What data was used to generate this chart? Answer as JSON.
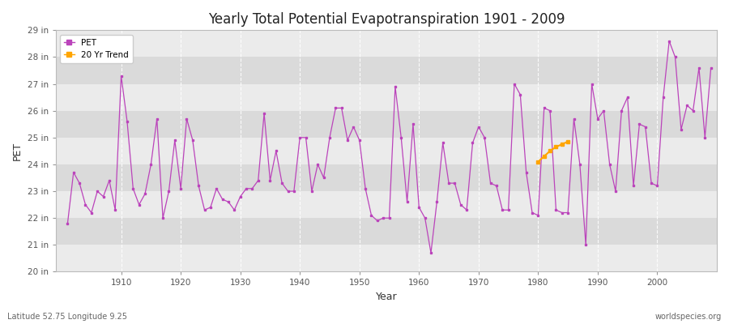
{
  "title": "Yearly Total Potential Evapotranspiration 1901 - 2009",
  "xlabel": "Year",
  "ylabel": "PET",
  "footnote_left": "Latitude 52.75 Longitude 9.25",
  "footnote_right": "worldspecies.org",
  "ylim": [
    20,
    29
  ],
  "ytick_labels": [
    "20 in",
    "21 in",
    "22 in",
    "23 in",
    "24 in",
    "25 in",
    "26 in",
    "27 in",
    "28 in",
    "29 in"
  ],
  "ytick_values": [
    20,
    21,
    22,
    23,
    24,
    25,
    26,
    27,
    28,
    29
  ],
  "pet_color": "#BB44BB",
  "trend_color": "#FFA500",
  "fig_bg": "#FFFFFF",
  "plot_bg": "#E8E8E8",
  "band_light": "#EBEBEB",
  "band_dark": "#DADADA",
  "pet_data": {
    "1901": 21.8,
    "1902": 23.7,
    "1903": 23.3,
    "1904": 22.5,
    "1905": 22.2,
    "1906": 23.0,
    "1907": 22.8,
    "1908": 23.4,
    "1909": 22.3,
    "1910": 27.3,
    "1911": 25.6,
    "1912": 23.1,
    "1913": 22.5,
    "1914": 22.9,
    "1915": 24.0,
    "1916": 25.7,
    "1917": 22.0,
    "1918": 23.0,
    "1919": 24.9,
    "1920": 23.1,
    "1921": 25.7,
    "1922": 24.9,
    "1923": 23.2,
    "1924": 22.3,
    "1925": 22.4,
    "1926": 23.1,
    "1927": 22.7,
    "1928": 22.6,
    "1929": 22.3,
    "1930": 22.8,
    "1931": 23.1,
    "1932": 23.1,
    "1933": 23.4,
    "1934": 25.9,
    "1935": 23.4,
    "1936": 24.5,
    "1937": 23.3,
    "1938": 23.0,
    "1939": 23.0,
    "1940": 25.0,
    "1941": 25.0,
    "1942": 23.0,
    "1943": 24.0,
    "1944": 23.5,
    "1945": 25.0,
    "1946": 26.1,
    "1947": 26.1,
    "1948": 24.9,
    "1949": 25.4,
    "1950": 24.9,
    "1951": 23.1,
    "1952": 22.1,
    "1953": 21.9,
    "1954": 22.0,
    "1955": 22.0,
    "1956": 26.9,
    "1957": 25.0,
    "1958": 22.6,
    "1959": 25.5,
    "1960": 22.4,
    "1961": 22.0,
    "1962": 20.7,
    "1963": 22.6,
    "1964": 24.8,
    "1965": 23.3,
    "1966": 23.3,
    "1967": 22.5,
    "1968": 22.3,
    "1969": 24.8,
    "1970": 25.4,
    "1971": 25.0,
    "1972": 23.3,
    "1973": 23.2,
    "1974": 22.3,
    "1975": 22.3,
    "1976": 27.0,
    "1977": 26.6,
    "1978": 23.7,
    "1979": 22.2,
    "1980": 22.1,
    "1981": 26.1,
    "1982": 26.0,
    "1983": 22.3,
    "1984": 22.2,
    "1985": 22.2,
    "1986": 25.7,
    "1987": 24.0,
    "1988": 21.0,
    "1989": 27.0,
    "1990": 25.7,
    "1991": 26.0,
    "1992": 24.0,
    "1993": 23.0,
    "1994": 26.0,
    "1995": 26.5,
    "1996": 23.2,
    "1997": 25.5,
    "1998": 25.4,
    "1999": 23.3,
    "2000": 23.2,
    "2001": 26.5,
    "2002": 28.6,
    "2003": 28.0,
    "2004": 25.3,
    "2005": 26.2,
    "2006": 26.0,
    "2007": 27.6,
    "2008": 25.0,
    "2009": 27.6
  },
  "trend_data": {
    "1980": 24.1,
    "1981": 24.3,
    "1982": 24.5,
    "1983": 24.65,
    "1984": 24.75,
    "1985": 24.85
  },
  "legend_entries": [
    "PET",
    "20 Yr Trend"
  ],
  "xlim": [
    1899,
    2010
  ],
  "xticks": [
    1910,
    1920,
    1930,
    1940,
    1950,
    1960,
    1970,
    1980,
    1990,
    2000
  ]
}
